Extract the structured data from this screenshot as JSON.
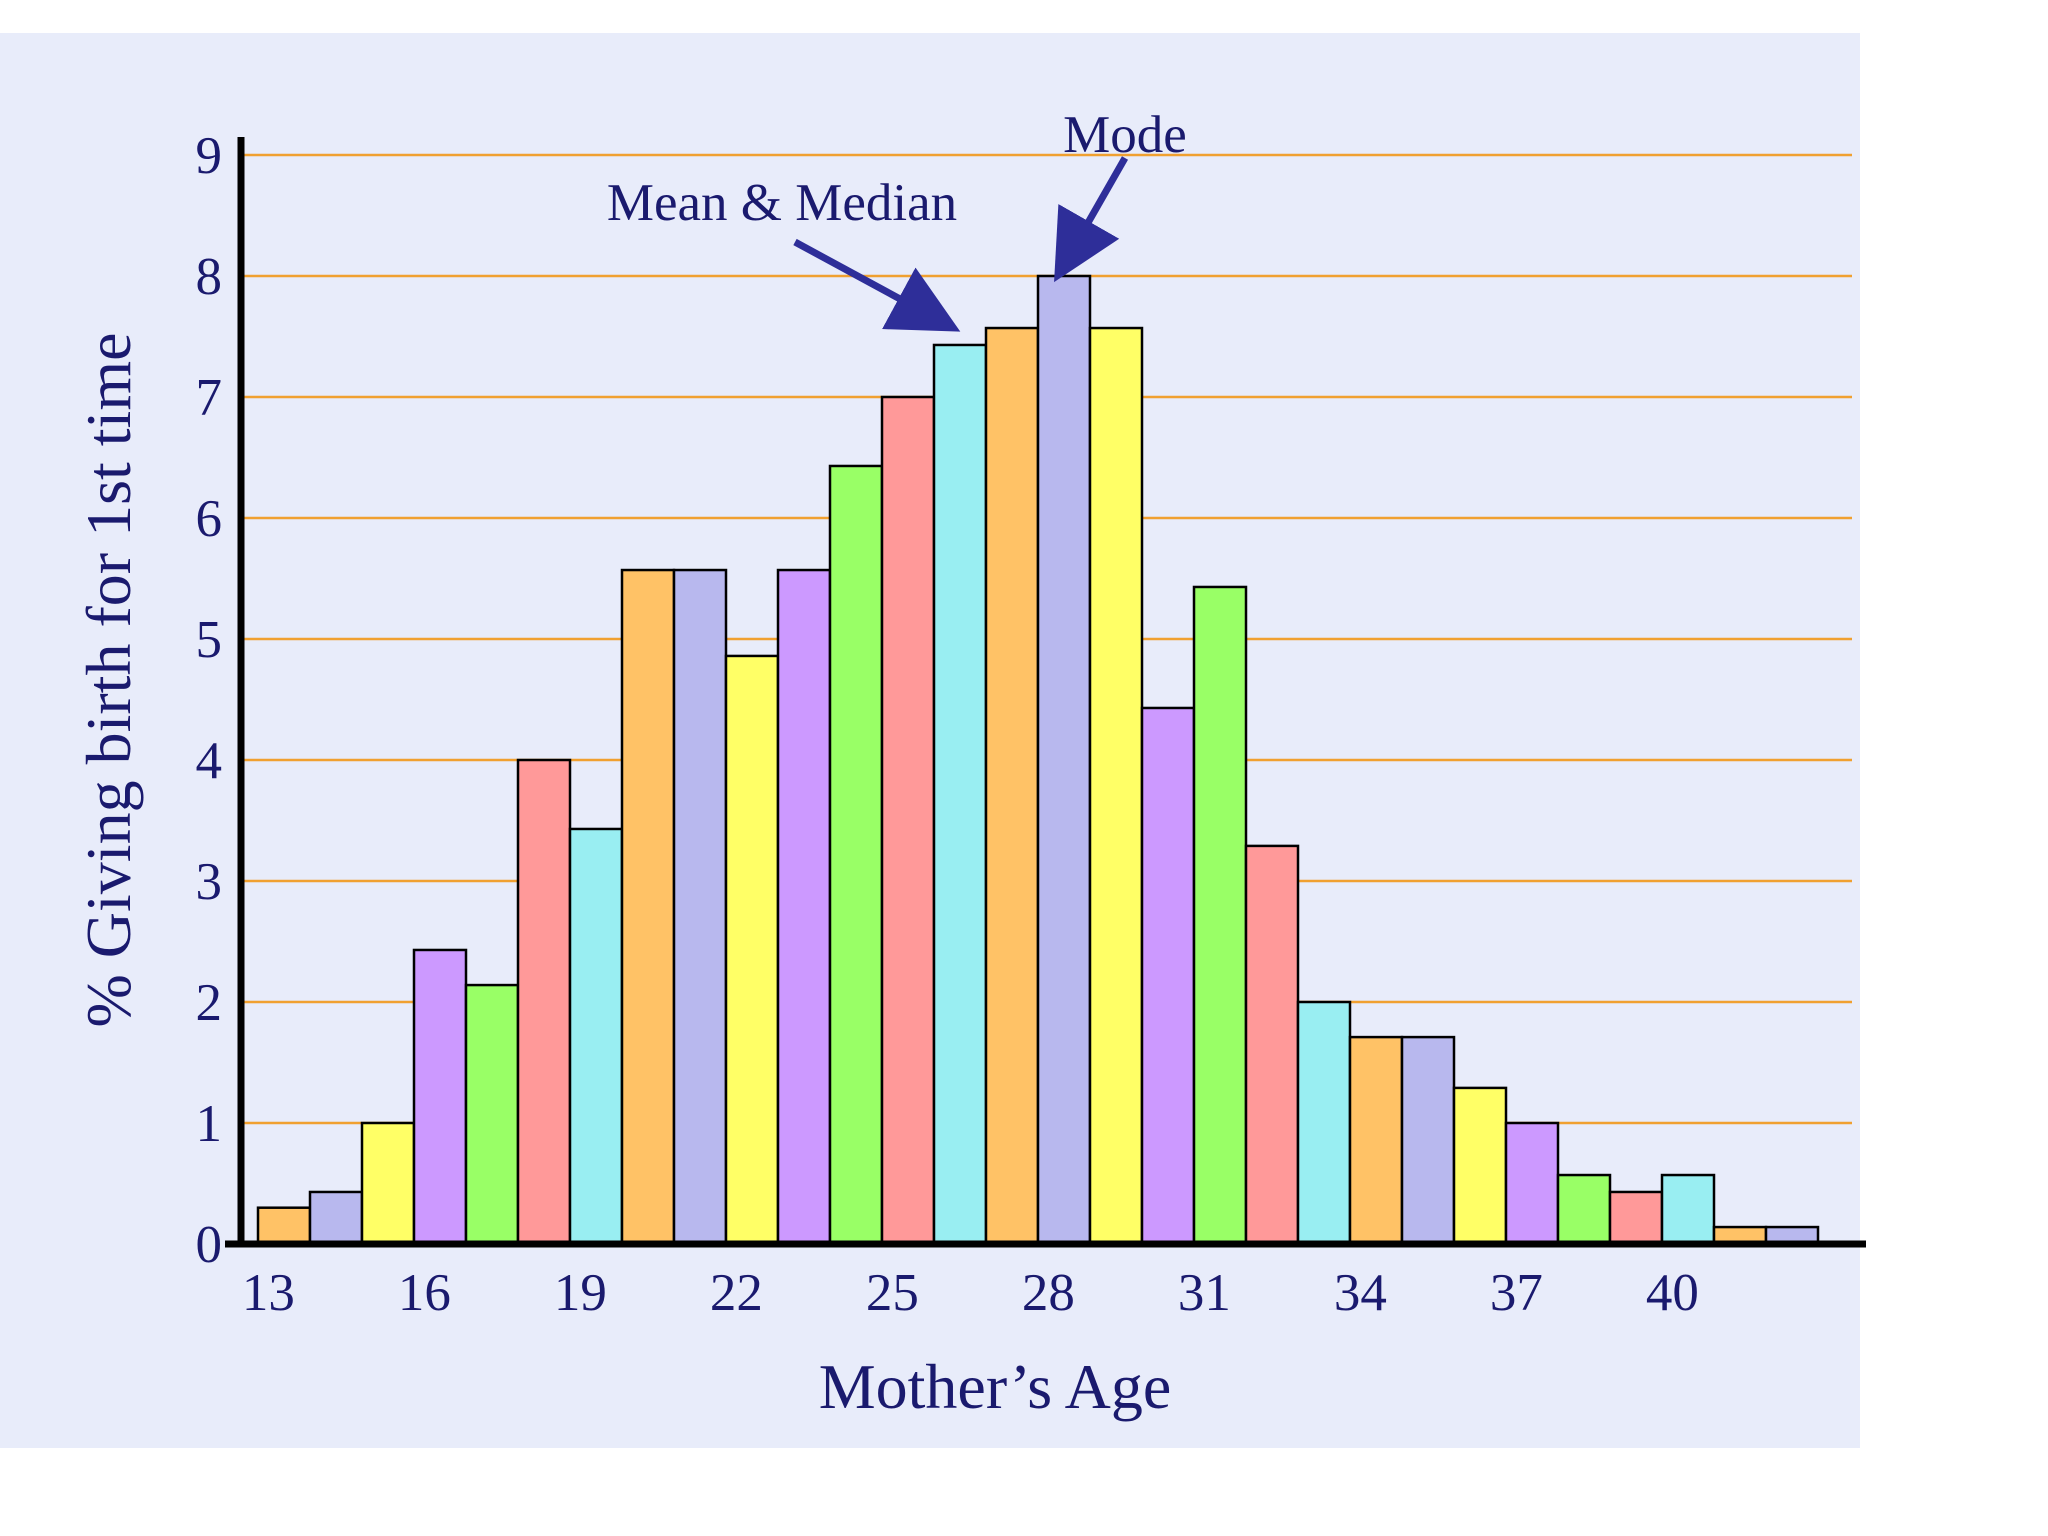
{
  "chart_data": {
    "type": "bar",
    "xlabel": "Mother’s Age",
    "ylabel": "% Giving birth for 1st time",
    "ylim": [
      0,
      9
    ],
    "yticks": [
      "0",
      "1",
      "2",
      "3",
      "4",
      "5",
      "6",
      "7",
      "8",
      "9"
    ],
    "xtick_labels": [
      "13",
      "16",
      "19",
      "22",
      "25",
      "28",
      "31",
      "34",
      "37",
      "40"
    ],
    "ages": [
      13,
      14,
      15,
      16,
      17,
      18,
      19,
      20,
      21,
      22,
      23,
      24,
      25,
      26,
      27,
      28,
      29,
      30,
      31,
      32,
      33,
      34,
      35,
      36,
      37,
      38,
      39,
      40,
      41,
      42
    ],
    "values": [
      0.3,
      0.43,
      1.0,
      2.43,
      2.14,
      4.0,
      3.43,
      5.57,
      5.57,
      4.86,
      5.57,
      6.43,
      7.0,
      7.43,
      7.57,
      8.0,
      7.57,
      4.43,
      5.43,
      3.29,
      2.0,
      1.71,
      1.71,
      1.29,
      1.0,
      0.57,
      0.43,
      0.57,
      0.14,
      0.14
    ],
    "bar_colors": [
      "#ffc266",
      "#b8b8ee",
      "#ffff66",
      "#cc99ff",
      "#99ff66",
      "#ff9999",
      "#99eef2"
    ],
    "grid": true,
    "grid_color": "#f0a030",
    "annotations": [
      {
        "text": "Mode",
        "target_age": 28
      },
      {
        "text": "Mean & Median",
        "target_age": 26
      }
    ],
    "accent_color": "#2e2e99",
    "text_color": "#1a1a6e"
  }
}
